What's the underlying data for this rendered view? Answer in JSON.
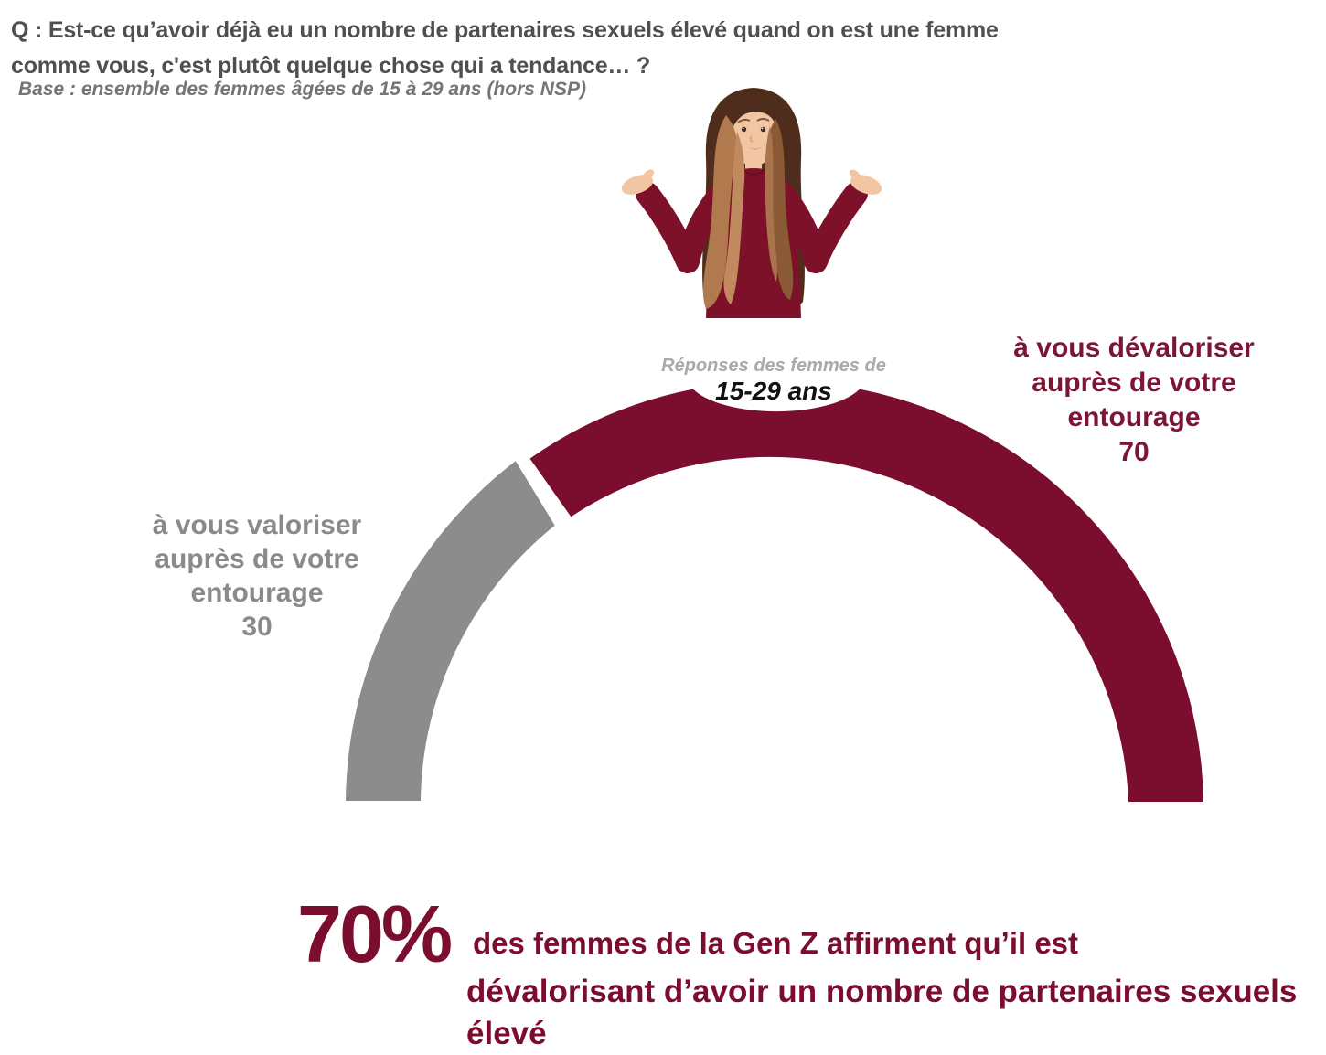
{
  "header": {
    "question_line1": "Q : Est-ce qu’avoir déjà eu un nombre de partenaires sexuels élevé quand on est une femme",
    "question_line2": "comme vous, c'est plutôt quelque chose qui a tendance… ?",
    "base_note": "Base : ensemble des femmes âgées de 15 à 29 ans (hors NSP)"
  },
  "chart_data": {
    "type": "pie",
    "variant": "half-donut-gauge",
    "center_label": {
      "line1": "Réponses des femmes de",
      "line2": "15-29 ans"
    },
    "slices": [
      {
        "label": "à vous valoriser auprès de votre entourage",
        "value": 30,
        "color": "#8C8C8C"
      },
      {
        "label": "à vous dévaloriser auprès de votre entourage",
        "value": 70,
        "color": "#7B0D2E"
      }
    ],
    "total": 100,
    "legend_position": "beside-slices"
  },
  "labels": {
    "left": {
      "lines": [
        "à vous valoriser",
        "auprès de votre",
        "entourage"
      ],
      "value": "30"
    },
    "right": {
      "lines": [
        "à vous dévaloriser",
        "auprès de votre",
        "entourage"
      ],
      "value": "70"
    }
  },
  "footer": {
    "stat_value": "70%",
    "line1": "des femmes de la Gen Z affirment qu’il est",
    "line2": "dévalorisant d’avoir un nombre de partenaires sexuels",
    "line3": "élevé"
  },
  "illustration": {
    "name": "woman-shrugging",
    "top_color": "#7D1128",
    "hair_dark": "#4F2D1C",
    "hair_light": "#B07A4E",
    "skin": "#F2C5A3"
  }
}
